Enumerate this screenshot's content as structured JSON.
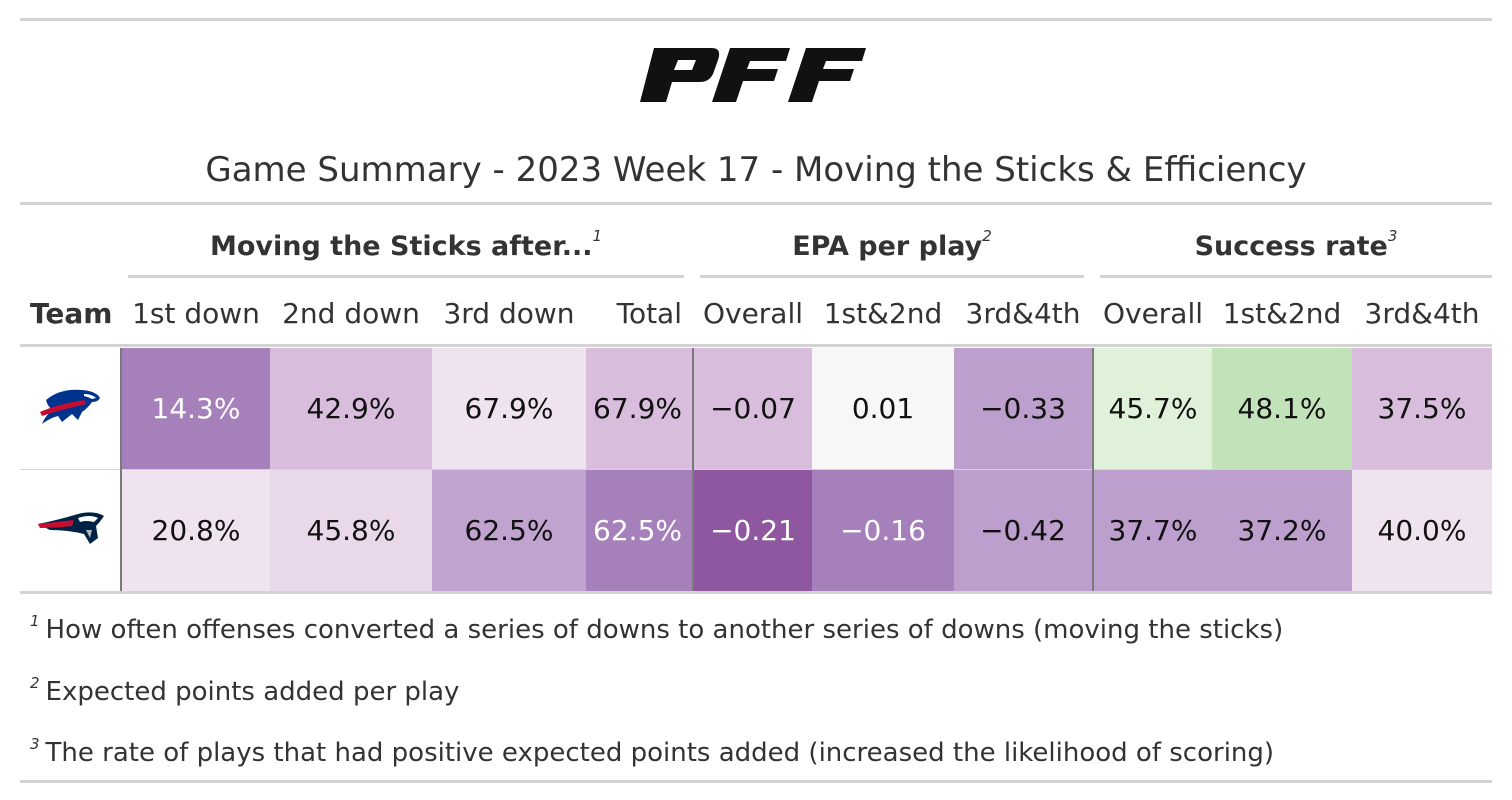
{
  "title": "Game Summary - 2023 Week 17 - Moving the Sticks & Efficiency",
  "brand": {
    "logo_text": "PFF"
  },
  "spanners": [
    {
      "label": "Moving the Sticks after...",
      "note": "1"
    },
    {
      "label": "EPA per play",
      "note": "2"
    },
    {
      "label": "Success rate",
      "note": "3"
    }
  ],
  "columns": [
    "Team",
    "1st down",
    "2nd down",
    "3rd down",
    "Total",
    "Overall",
    "1st&2nd",
    "3rd&4th",
    "Overall",
    "1st&2nd",
    "3rd&4th"
  ],
  "rows": [
    {
      "team_icon": "buffalo-bills-logo-icon",
      "values": [
        "14.3%",
        "42.9%",
        "67.9%",
        "67.9%",
        "−0.07",
        "0.01",
        "−0.33",
        "45.7%",
        "48.1%",
        "37.5%"
      ],
      "fills": [
        "#a680bb",
        "#d8bddc",
        "#eee3ef",
        "#d8bddc",
        "#d8bddc",
        "#f7f7f7",
        "#bd9fcd",
        "#dff2d9",
        "#c2e3b9",
        "#d8bddc"
      ]
    },
    {
      "team_icon": "new-england-patriots-logo-icon",
      "values": [
        "20.8%",
        "45.8%",
        "62.5%",
        "62.5%",
        "−0.21",
        "−0.16",
        "−0.42",
        "37.7%",
        "37.2%",
        "40.0%"
      ],
      "fills": [
        "#eee3ef",
        "#e8d8e9",
        "#c1a3cf",
        "#a680bb",
        "#8e57a0",
        "#a680bb",
        "#bd9fcd",
        "#bd9fcd",
        "#bd9fcd",
        "#eee3ef"
      ]
    }
  ],
  "footnotes": [
    {
      "mark": "1",
      "text": "How often offenses converted a series of downs to another series of downs (moving the sticks)"
    },
    {
      "mark": "2",
      "text": "Expected points added per play"
    },
    {
      "mark": "3",
      "text": "The rate of plays that had positive expected points added (increased the likelihood of scoring)"
    }
  ],
  "colors": {
    "text": "#333333",
    "rule": "#d3d3d3",
    "purple_dark": "#8e57a0",
    "green": "#c2e3b9"
  }
}
